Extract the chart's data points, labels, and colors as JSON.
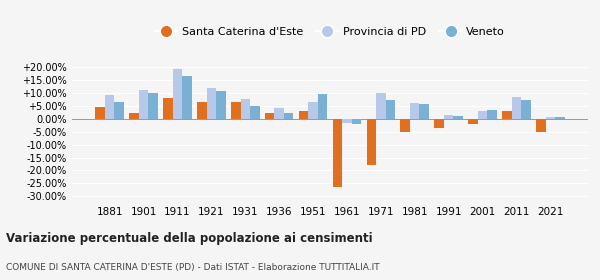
{
  "years": [
    1881,
    1901,
    1911,
    1921,
    1931,
    1936,
    1951,
    1961,
    1971,
    1981,
    1991,
    2001,
    2011,
    2021
  ],
  "santa_caterina": [
    4.5,
    2.0,
    8.0,
    6.5,
    6.5,
    2.0,
    3.0,
    -26.5,
    -18.0,
    -5.2,
    -3.5,
    -2.0,
    3.0,
    -5.0
  ],
  "provincia_pd": [
    9.0,
    11.0,
    19.0,
    12.0,
    7.5,
    4.0,
    6.5,
    -1.5,
    10.0,
    6.0,
    1.5,
    3.0,
    8.5,
    0.5
  ],
  "veneto": [
    6.5,
    10.0,
    16.5,
    10.5,
    5.0,
    2.0,
    9.5,
    -2.0,
    7.0,
    5.5,
    1.0,
    3.5,
    7.0,
    0.7
  ],
  "color_santa": "#e07020",
  "color_pd": "#b8c8e8",
  "color_veneto": "#7ab0d4",
  "title": "Variazione percentuale della popolazione ai censimenti",
  "subtitle": "COMUNE DI SANTA CATERINA D'ESTE (PD) - Dati ISTAT - Elaborazione TUTTITALIA.IT",
  "legend_labels": [
    "Santa Caterina d'Este",
    "Provincia di PD",
    "Veneto"
  ],
  "yticks": [
    -30,
    -25,
    -20,
    -15,
    -10,
    -5,
    0,
    5,
    10,
    15,
    20
  ],
  "ylim": [
    -32,
    22
  ],
  "bg_color": "#f5f5f5"
}
